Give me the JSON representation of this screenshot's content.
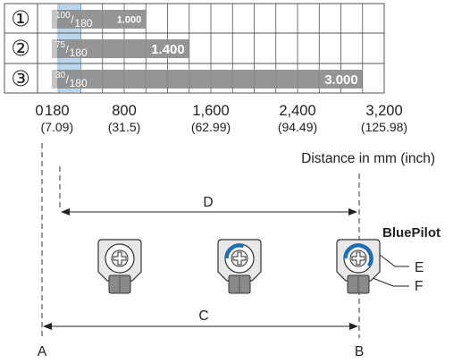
{
  "rows": [
    {
      "marker": "①",
      "label_sup": "100",
      "label_sub": "180",
      "value_label": "1.000",
      "start": 180,
      "end": 1000
    },
    {
      "marker": "②",
      "label_sup": "75",
      "label_sub": "180",
      "value_label": "1.400",
      "start": 180,
      "end": 1400
    },
    {
      "marker": "③",
      "label_sup": "30",
      "label_sub": "180",
      "value_label": "3.000",
      "start": 180,
      "end": 3000
    }
  ],
  "axis": {
    "ticks": [
      {
        "mm": 0,
        "label": "0",
        "inch": ""
      },
      {
        "mm": 180,
        "label": "180",
        "inch": "(7.09)"
      },
      {
        "mm": 800,
        "label": "800",
        "inch": "(31.5)"
      },
      {
        "mm": 1600,
        "label": "1,600",
        "inch": "(62.99)"
      },
      {
        "mm": 2400,
        "label": "2,400",
        "inch": "(94.49)"
      },
      {
        "mm": 3200,
        "label": "3,200",
        "inch": "(125.98)"
      }
    ],
    "max": 3200,
    "blue_band": [
      180,
      400
    ],
    "title": "Distance in mm (inch)"
  },
  "colors": {
    "bar": "#8c8c8c",
    "bar_light": "#c4c4c4",
    "band": "#aed1ea",
    "ring": "#1f6fb2",
    "grid": "#555555"
  },
  "diagram": {
    "label_d": "D",
    "label_c": "C",
    "label_a": "A",
    "label_b": "B",
    "label_e": "E",
    "label_f": "F",
    "bluepilot": "BluePilot",
    "indicators": [
      {
        "name": "potentiometer-icon",
        "ring_fraction": 0
      },
      {
        "name": "potentiometer-icon",
        "ring_fraction": 0.3
      },
      {
        "name": "potentiometer-icon",
        "ring_fraction": 0.6
      }
    ]
  }
}
